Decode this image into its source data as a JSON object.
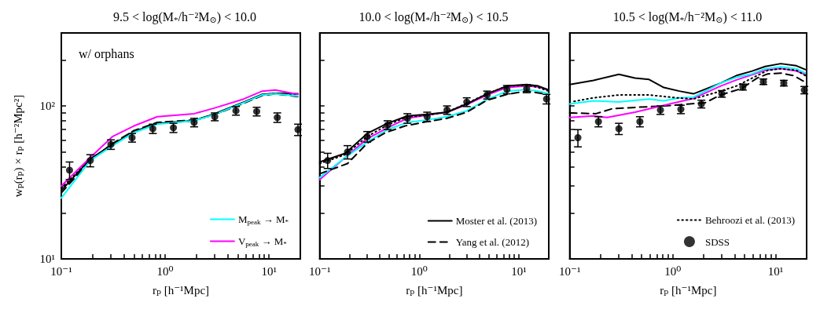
{
  "chart_data": [
    {
      "type": "line",
      "title": "9.5 < log(M$_{*}$/h⁻²M$_{⊙}$) < 10.0",
      "xlabel": "rₚ [h⁻¹Mpc]",
      "ylabel": "wₚ(rₚ) × rₚ [h⁻²Mpc²]",
      "annotations": [
        "w/ orphans"
      ],
      "log": "xy",
      "legend": "bottom right",
      "xlim": [
        0.1,
        20
      ],
      "ylim": [
        10,
        300
      ],
      "xticks": [
        {
          "value": 0.1,
          "label": "10⁻¹"
        },
        {
          "value": 0.2,
          "label": null
        },
        {
          "value": 0.3,
          "label": null
        },
        {
          "value": 0.4,
          "label": null
        },
        {
          "value": 0.5,
          "label": null
        },
        {
          "value": 0.6,
          "label": null
        },
        {
          "value": 0.7,
          "label": null
        },
        {
          "value": 0.8,
          "label": null
        },
        {
          "value": 0.9,
          "label": null
        },
        {
          "value": 1,
          "label": "10⁰"
        },
        {
          "value": 2,
          "label": null
        },
        {
          "value": 3,
          "label": null
        },
        {
          "value": 4,
          "label": null
        },
        {
          "value": 5,
          "label": null
        },
        {
          "value": 6,
          "label": null
        },
        {
          "value": 7,
          "label": null
        },
        {
          "value": 8,
          "label": null
        },
        {
          "value": 9,
          "label": null
        },
        {
          "value": 10,
          "label": "10¹"
        }
      ],
      "yticks": [
        {
          "value": 10,
          "label": "10¹"
        },
        {
          "value": 20,
          "label": null
        },
        {
          "value": 30,
          "label": null
        },
        {
          "value": 40,
          "label": null
        },
        {
          "value": 50,
          "label": null
        },
        {
          "value": 60,
          "label": null
        },
        {
          "value": 70,
          "label": null
        },
        {
          "value": 80,
          "label": null
        },
        {
          "value": 90,
          "label": null
        },
        {
          "value": 100,
          "label": "10²"
        },
        {
          "value": 200,
          "label": null
        }
      ],
      "series": [
        {
          "type": "line",
          "color": "#000000",
          "line_style": "solid",
          "x": [
            0.1,
            0.19,
            0.3,
            0.5,
            0.84,
            1.9,
            3.0,
            5.7,
            8.6,
            11.5,
            19
          ],
          "values": [
            28,
            45,
            55,
            68,
            77,
            80,
            89,
            106,
            119,
            121,
            120
          ]
        },
        {
          "type": "line",
          "color": "#000000",
          "line_style": "dashed",
          "x": [
            0.1,
            0.19,
            0.3,
            0.5,
            0.84,
            1.9,
            3.0,
            5.7,
            8.6,
            11.5,
            19
          ],
          "values": [
            27,
            44,
            56,
            69,
            78,
            81,
            88,
            104,
            117,
            120,
            115
          ]
        },
        {
          "type": "line",
          "color": "#000000",
          "line_style": "dotted",
          "x": [
            0.1,
            0.19,
            0.3,
            0.5,
            0.84,
            1.9,
            3.0,
            5.7,
            8.6,
            11.5,
            19
          ],
          "values": [
            29,
            45,
            55,
            67,
            77,
            80,
            88,
            105,
            118,
            121,
            118
          ]
        },
        {
          "type": "line",
          "name": "M$_{peak}$ → M$_{*}$",
          "color": "#00ffff",
          "line_style": "solid",
          "x": [
            0.1,
            0.19,
            0.3,
            0.5,
            0.84,
            1.9,
            3.0,
            5.7,
            8.6,
            11.5,
            19
          ],
          "values": [
            25,
            44,
            54,
            67,
            76,
            80,
            88,
            105,
            118,
            120,
            116
          ]
        },
        {
          "type": "line",
          "name": "V$_{peak}$ → M$_{*}$",
          "color": "#ff00ff",
          "line_style": "solid",
          "x": [
            0.1,
            0.19,
            0.31,
            0.5,
            0.84,
            1.9,
            3.0,
            5.7,
            8.6,
            11.5,
            19
          ],
          "values": [
            30,
            46,
            63,
            74,
            85,
            89,
            97,
            111,
            125,
            127,
            119
          ]
        },
        {
          "type": "scatter",
          "marker": "circle",
          "color": "#000000",
          "x": [
            0.12,
            0.19,
            0.3,
            0.48,
            0.76,
            1.2,
            1.9,
            3.0,
            4.8,
            7.6,
            12,
            19
          ],
          "values": [
            38,
            44,
            56,
            62,
            71,
            72,
            78,
            85,
            93,
            92,
            84,
            70
          ],
          "errors": [
            5,
            4,
            4,
            4,
            5,
            5,
            5,
            5,
            6,
            6,
            6,
            6
          ]
        }
      ]
    },
    {
      "type": "line",
      "title": "10.0 < log(M$_{*}$/h⁻²M$_{⊙}$) < 10.5",
      "xlabel": "rₚ [h⁻¹Mpc]",
      "log": "xy",
      "legend": "bottom right",
      "tick_labels": "x",
      "xlim": [
        0.1,
        20
      ],
      "ylim": [
        10,
        300
      ],
      "xticks": [
        {
          "value": 0.1,
          "label": "10⁻¹"
        },
        {
          "value": 0.2,
          "label": null
        },
        {
          "value": 0.3,
          "label": null
        },
        {
          "value": 0.4,
          "label": null
        },
        {
          "value": 0.5,
          "label": null
        },
        {
          "value": 0.6,
          "label": null
        },
        {
          "value": 0.7,
          "label": null
        },
        {
          "value": 0.8,
          "label": null
        },
        {
          "value": 0.9,
          "label": null
        },
        {
          "value": 1,
          "label": "10⁰"
        },
        {
          "value": 2,
          "label": null
        },
        {
          "value": 3,
          "label": null
        },
        {
          "value": 4,
          "label": null
        },
        {
          "value": 5,
          "label": null
        },
        {
          "value": 6,
          "label": null
        },
        {
          "value": 7,
          "label": null
        },
        {
          "value": 8,
          "label": null
        },
        {
          "value": 9,
          "label": null
        },
        {
          "value": 10,
          "label": "10¹"
        }
      ],
      "yticks": [
        {
          "value": 10,
          "label": null
        },
        {
          "value": 20,
          "label": null
        },
        {
          "value": 30,
          "label": null
        },
        {
          "value": 40,
          "label": null
        },
        {
          "value": 50,
          "label": null
        },
        {
          "value": 60,
          "label": null
        },
        {
          "value": 70,
          "label": null
        },
        {
          "value": 80,
          "label": null
        },
        {
          "value": 90,
          "label": null
        },
        {
          "value": 100,
          "label": null
        },
        {
          "value": 200,
          "label": null
        }
      ],
      "series": [
        {
          "type": "line",
          "color": "#ff00ff",
          "line_style": "solid",
          "x": [
            0.1,
            0.18,
            0.3,
            0.48,
            0.76,
            1.2,
            1.9,
            3.0,
            4.8,
            7.6,
            12,
            15.7,
            20
          ],
          "values": [
            33,
            46,
            61,
            72,
            83,
            87,
            91,
            102,
            118,
            132,
            135,
            133,
            127
          ]
        },
        {
          "type": "line",
          "color": "#00ffff",
          "line_style": "solid",
          "x": [
            0.1,
            0.18,
            0.3,
            0.48,
            0.76,
            1.2,
            1.9,
            3.0,
            4.8,
            7.6,
            12,
            15.7,
            20
          ],
          "values": [
            34,
            46,
            58,
            70,
            78,
            81,
            85,
            93,
            110,
            125,
            128,
            125,
            120
          ]
        },
        {
          "type": "line",
          "color": "#000000",
          "line_style": "dotted",
          "x": [
            0.1,
            0.18,
            0.3,
            0.48,
            0.76,
            1.2,
            1.9,
            3.0,
            4.8,
            7.6,
            12,
            15.7,
            20
          ],
          "values": [
            42,
            48,
            63,
            75,
            85,
            87,
            91,
            104,
            120,
            135,
            137,
            132,
            125
          ]
        },
        {
          "type": "line",
          "name": "Moster et al. (2013)",
          "color": "#000000",
          "line_style": "solid",
          "x": [
            0.1,
            0.18,
            0.3,
            0.48,
            0.76,
            1.2,
            1.9,
            3.0,
            4.8,
            7.6,
            12,
            15.7,
            20
          ],
          "values": [
            43,
            49,
            66,
            77,
            86,
            88,
            91,
            103,
            120,
            135,
            138,
            135,
            127
          ]
        },
        {
          "type": "line",
          "name": "Yang et al. (2012)",
          "color": "#000000",
          "line_style": "dashed",
          "x": [
            0.1,
            0.19,
            0.3,
            0.46,
            0.72,
            1.2,
            1.9,
            3.0,
            4.8,
            7.6,
            12,
            18
          ],
          "values": [
            36,
            42,
            57,
            67,
            74,
            79,
            83,
            91,
            109,
            119,
            125,
            120
          ]
        },
        {
          "type": "scatter",
          "marker": "circle",
          "color": "#000000",
          "x": [
            0.12,
            0.19,
            0.3,
            0.48,
            0.76,
            1.2,
            1.9,
            3.0,
            4.8,
            7.6,
            12,
            19
          ],
          "values": [
            44,
            50,
            63,
            75,
            83,
            85,
            94,
            106,
            118,
            128,
            130,
            111
          ],
          "errors": [
            5,
            5,
            5,
            5,
            6,
            6,
            6,
            7,
            7,
            8,
            8,
            8
          ]
        }
      ]
    },
    {
      "type": "line",
      "title": "10.5 < log(M$_{*}$/h⁻²M$_{⊙}$) < 11.0",
      "xlabel": "rₚ [h⁻¹Mpc]",
      "log": "xy",
      "legend": "bottom right",
      "tick_labels": "x",
      "xlim": [
        0.1,
        20
      ],
      "ylim": [
        10,
        300
      ],
      "xticks": [
        {
          "value": 0.1,
          "label": "10⁻¹"
        },
        {
          "value": 0.2,
          "label": null
        },
        {
          "value": 0.3,
          "label": null
        },
        {
          "value": 0.4,
          "label": null
        },
        {
          "value": 0.5,
          "label": null
        },
        {
          "value": 0.6,
          "label": null
        },
        {
          "value": 0.7,
          "label": null
        },
        {
          "value": 0.8,
          "label": null
        },
        {
          "value": 0.9,
          "label": null
        },
        {
          "value": 1,
          "label": "10⁰"
        },
        {
          "value": 2,
          "label": null
        },
        {
          "value": 3,
          "label": null
        },
        {
          "value": 4,
          "label": null
        },
        {
          "value": 5,
          "label": null
        },
        {
          "value": 6,
          "label": null
        },
        {
          "value": 7,
          "label": null
        },
        {
          "value": 8,
          "label": null
        },
        {
          "value": 9,
          "label": null
        },
        {
          "value": 10,
          "label": "10¹"
        }
      ],
      "yticks": [
        {
          "value": 10,
          "label": null
        },
        {
          "value": 20,
          "label": null
        },
        {
          "value": 30,
          "label": null
        },
        {
          "value": 40,
          "label": null
        },
        {
          "value": 50,
          "label": null
        },
        {
          "value": 60,
          "label": null
        },
        {
          "value": 70,
          "label": null
        },
        {
          "value": 80,
          "label": null
        },
        {
          "value": 90,
          "label": null
        },
        {
          "value": 100,
          "label": null
        },
        {
          "value": 200,
          "label": null
        }
      ],
      "series": [
        {
          "type": "line",
          "color": "#000000",
          "line_style": "solid",
          "x": [
            0.1,
            0.17,
            0.3,
            0.43,
            0.59,
            0.82,
            1.16,
            1.59,
            2.93,
            4.16,
            5.9,
            7.9,
            11.2,
            15.9,
            19.4
          ],
          "values": [
            138,
            147,
            161,
            152,
            149,
            132,
            125,
            120,
            141,
            158,
            169,
            181,
            189,
            183,
            173
          ]
        },
        {
          "type": "line",
          "color": "#000000",
          "line_style": "dashed",
          "x": [
            0.1,
            0.18,
            0.26,
            0.46,
            0.82,
            1.46,
            2.07,
            2.93,
            4.67,
            6.6,
            8.4,
            11.2,
            14.9,
            19.4
          ],
          "values": [
            90,
            89,
            96,
            98,
            100,
            103,
            105,
            118,
            130,
            152,
            162,
            164,
            158,
            143
          ]
        },
        {
          "type": "line",
          "color": "#ff00ff",
          "line_style": "solid",
          "x": [
            0.1,
            0.17,
            0.23,
            0.43,
            0.82,
            1.59,
            2.93,
            4.16,
            5.9,
            7.9,
            11.2,
            15.9,
            19.4
          ],
          "values": [
            84,
            86,
            84,
            91,
            101,
            112,
            135,
            148,
            160,
            171,
            176,
            169,
            161
          ]
        },
        {
          "type": "line",
          "color": "#00ffff",
          "line_style": "solid",
          "x": [
            0.1,
            0.17,
            0.3,
            0.59,
            0.82,
            1.16,
            1.59,
            2.93,
            4.16,
            5.9,
            7.9,
            11.2,
            15.9,
            19.4
          ],
          "values": [
            103,
            108,
            106,
            111,
            108,
            113,
            114,
            141,
            154,
            162,
            175,
            180,
            175,
            164
          ]
        },
        {
          "type": "line",
          "name": "Behroozi et al. (2013)",
          "color": "#000000",
          "line_style": "dotted",
          "x": [
            0.11,
            0.17,
            0.3,
            0.59,
            1.09,
            1.59,
            2.93,
            4.16,
            5.9,
            8.4,
            11.2,
            15.9,
            19.4
          ],
          "values": [
            107,
            113,
            118,
            118,
            113,
            111,
            125,
            135,
            152,
            171,
            175,
            171,
            158
          ]
        },
        {
          "type": "scatter",
          "name": "SDSS",
          "marker": "circle",
          "color": "#000000",
          "x": [
            0.12,
            0.19,
            0.3,
            0.48,
            0.76,
            1.2,
            1.9,
            3.0,
            4.8,
            7.6,
            12,
            19
          ],
          "values": [
            62,
            79,
            71,
            79,
            94,
            95,
            103,
            120,
            133,
            144,
            141,
            127
          ],
          "errors": [
            8,
            6,
            6,
            6,
            6,
            6,
            6,
            6,
            6,
            6,
            6,
            7
          ]
        }
      ]
    }
  ]
}
